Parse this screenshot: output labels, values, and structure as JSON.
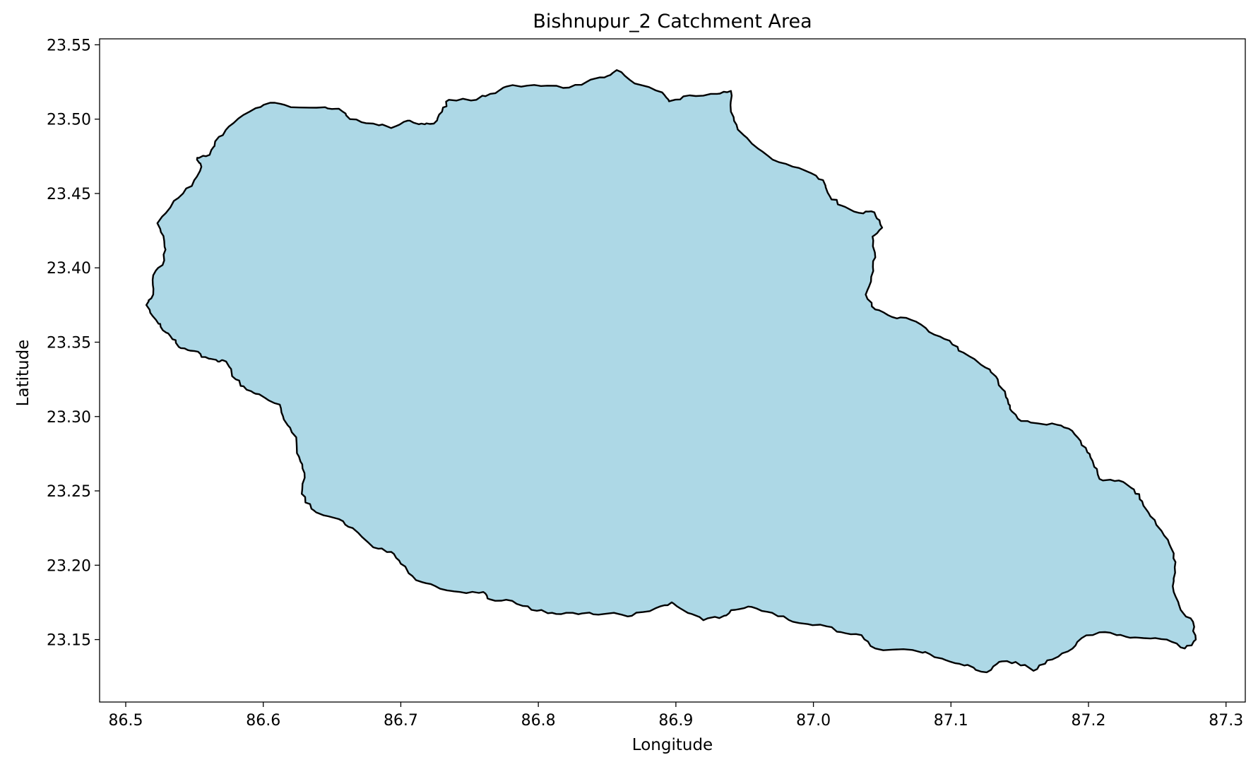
{
  "chart_data": {
    "type": "map",
    "title": "Bishnupur_2 Catchment Area",
    "xlabel": "Longitude",
    "ylabel": "Latitude",
    "xlim": [
      86.481,
      87.314
    ],
    "ylim": [
      23.108,
      23.554
    ],
    "xticks": [
      86.5,
      86.6,
      86.7,
      86.8,
      86.9,
      87.0,
      87.1,
      87.2,
      87.3
    ],
    "yticks": [
      23.15,
      23.2,
      23.25,
      23.3,
      23.35,
      23.4,
      23.45,
      23.5,
      23.55
    ],
    "xtick_labels": [
      "86.5",
      "86.6",
      "86.7",
      "86.8",
      "86.9",
      "87.0",
      "87.1",
      "87.2",
      "87.3"
    ],
    "ytick_labels": [
      "23.15",
      "23.20",
      "23.25",
      "23.30",
      "23.35",
      "23.40",
      "23.45",
      "23.50",
      "23.55"
    ],
    "grid": false,
    "fill_color": "#add8e6",
    "edge_color": "#000000",
    "boundary": [
      [
        86.515,
        23.375
      ],
      [
        86.52,
        23.382
      ],
      [
        86.52,
        23.395
      ],
      [
        86.528,
        23.405
      ],
      [
        86.528,
        23.418
      ],
      [
        86.523,
        23.43
      ],
      [
        86.535,
        23.445
      ],
      [
        86.548,
        23.455
      ],
      [
        86.555,
        23.468
      ],
      [
        86.552,
        23.474
      ],
      [
        86.561,
        23.476
      ],
      [
        86.565,
        23.485
      ],
      [
        86.575,
        23.495
      ],
      [
        86.59,
        23.505
      ],
      [
        86.605,
        23.511
      ],
      [
        86.62,
        23.508
      ],
      [
        86.645,
        23.508
      ],
      [
        86.655,
        23.507
      ],
      [
        86.663,
        23.5
      ],
      [
        86.68,
        23.497
      ],
      [
        86.693,
        23.494
      ],
      [
        86.705,
        23.499
      ],
      [
        86.715,
        23.497
      ],
      [
        86.724,
        23.497
      ],
      [
        86.73,
        23.505
      ],
      [
        86.735,
        23.513
      ],
      [
        86.755,
        23.513
      ],
      [
        86.765,
        23.517
      ],
      [
        86.777,
        23.522
      ],
      [
        86.797,
        23.523
      ],
      [
        86.818,
        23.521
      ],
      [
        86.835,
        23.525
      ],
      [
        86.848,
        23.528
      ],
      [
        86.857,
        23.533
      ],
      [
        86.87,
        23.524
      ],
      [
        86.89,
        23.518
      ],
      [
        86.895,
        23.512
      ],
      [
        86.91,
        23.516
      ],
      [
        86.93,
        23.517
      ],
      [
        86.94,
        23.519
      ],
      [
        86.94,
        23.505
      ],
      [
        86.945,
        23.493
      ],
      [
        86.96,
        23.48
      ],
      [
        86.975,
        23.471
      ],
      [
        86.995,
        23.465
      ],
      [
        87.007,
        23.459
      ],
      [
        87.012,
        23.448
      ],
      [
        87.02,
        23.442
      ],
      [
        87.033,
        23.437
      ],
      [
        87.042,
        23.438
      ],
      [
        87.048,
        23.432
      ],
      [
        87.05,
        23.427
      ],
      [
        87.043,
        23.421
      ],
      [
        87.045,
        23.407
      ],
      [
        87.042,
        23.394
      ],
      [
        87.038,
        23.382
      ],
      [
        87.045,
        23.372
      ],
      [
        87.057,
        23.367
      ],
      [
        87.071,
        23.365
      ],
      [
        87.084,
        23.357
      ],
      [
        87.099,
        23.351
      ],
      [
        87.109,
        23.343
      ],
      [
        87.125,
        23.333
      ],
      [
        87.134,
        23.325
      ],
      [
        87.14,
        23.313
      ],
      [
        87.143,
        23.305
      ],
      [
        87.151,
        23.297
      ],
      [
        87.166,
        23.295
      ],
      [
        87.18,
        23.294
      ],
      [
        87.19,
        23.288
      ],
      [
        87.198,
        23.279
      ],
      [
        87.203,
        23.27
      ],
      [
        87.208,
        23.258
      ],
      [
        87.222,
        23.257
      ],
      [
        87.233,
        23.251
      ],
      [
        87.239,
        23.243
      ],
      [
        87.245,
        23.233
      ],
      [
        87.255,
        23.22
      ],
      [
        87.262,
        23.208
      ],
      [
        87.263,
        23.195
      ],
      [
        87.262,
        23.182
      ],
      [
        87.267,
        23.17
      ],
      [
        87.276,
        23.162
      ],
      [
        87.278,
        23.15
      ],
      [
        87.27,
        23.144
      ],
      [
        87.257,
        23.15
      ],
      [
        87.24,
        23.151
      ],
      [
        87.227,
        23.152
      ],
      [
        87.212,
        23.155
      ],
      [
        87.195,
        23.151
      ],
      [
        87.185,
        23.142
      ],
      [
        87.17,
        23.136
      ],
      [
        87.16,
        23.129
      ],
      [
        87.147,
        23.135
      ],
      [
        87.135,
        23.135
      ],
      [
        87.126,
        23.128
      ],
      [
        87.112,
        23.133
      ],
      [
        87.1,
        23.135
      ],
      [
        87.085,
        23.14
      ],
      [
        87.072,
        23.143
      ],
      [
        87.045,
        23.144
      ],
      [
        87.035,
        23.153
      ],
      [
        87.02,
        23.155
      ],
      [
        87.005,
        23.16
      ],
      [
        86.985,
        23.162
      ],
      [
        86.97,
        23.168
      ],
      [
        86.955,
        23.172
      ],
      [
        86.943,
        23.17
      ],
      [
        86.935,
        23.166
      ],
      [
        86.92,
        23.163
      ],
      [
        86.905,
        23.17
      ],
      [
        86.897,
        23.175
      ],
      [
        86.885,
        23.171
      ],
      [
        86.868,
        23.166
      ],
      [
        86.855,
        23.168
      ],
      [
        86.84,
        23.167
      ],
      [
        86.825,
        23.168
      ],
      [
        86.81,
        23.168
      ],
      [
        86.795,
        23.17
      ],
      [
        86.781,
        23.176
      ],
      [
        86.765,
        23.177
      ],
      [
        86.76,
        23.182
      ],
      [
        86.743,
        23.182
      ],
      [
        86.725,
        23.186
      ],
      [
        86.711,
        23.19
      ],
      [
        86.7,
        23.201
      ],
      [
        86.693,
        23.209
      ],
      [
        86.68,
        23.212
      ],
      [
        86.665,
        23.225
      ],
      [
        86.655,
        23.231
      ],
      [
        86.64,
        23.235
      ],
      [
        86.635,
        23.238
      ],
      [
        86.628,
        23.248
      ],
      [
        86.63,
        23.262
      ],
      [
        86.626,
        23.273
      ],
      [
        86.624,
        23.286
      ],
      [
        86.615,
        23.298
      ],
      [
        86.612,
        23.308
      ],
      [
        86.597,
        23.315
      ],
      [
        86.588,
        23.318
      ],
      [
        86.58,
        23.325
      ],
      [
        86.573,
        23.337
      ],
      [
        86.567,
        23.337
      ],
      [
        86.558,
        23.34
      ],
      [
        86.55,
        23.344
      ],
      [
        86.54,
        23.346
      ],
      [
        86.534,
        23.352
      ],
      [
        86.527,
        23.358
      ],
      [
        86.522,
        23.365
      ],
      [
        86.515,
        23.375
      ]
    ]
  }
}
